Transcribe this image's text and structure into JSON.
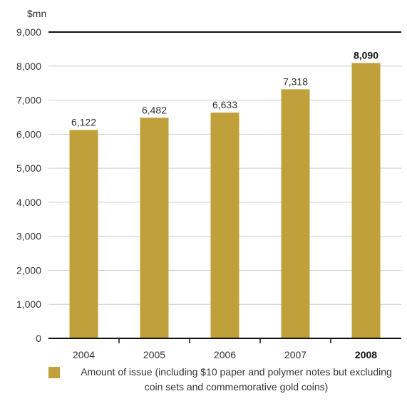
{
  "chart_data": {
    "type": "bar",
    "unit_label": "$mn",
    "categories": [
      "2004",
      "2005",
      "2006",
      "2007",
      "2008"
    ],
    "values": [
      6122,
      6482,
      6633,
      7318,
      8090
    ],
    "value_labels": [
      "6,122",
      "6,482",
      "6,633",
      "7,318",
      "8,090"
    ],
    "highlight_category": "2008",
    "ylim": [
      0,
      9000
    ],
    "yticks": [
      0,
      1000,
      2000,
      3000,
      4000,
      5000,
      6000,
      7000,
      8000,
      9000
    ],
    "ytick_labels": [
      "0",
      "1,000",
      "2,000",
      "3,000",
      "4,000",
      "5,000",
      "6,000",
      "7,000",
      "8,000",
      "9,000"
    ],
    "grid": true,
    "legend_position": "bottom",
    "series": [
      {
        "name": "Amount of issue (including $10 paper and polymer notes but excluding coin sets and commemorative gold coins)"
      }
    ],
    "colors": {
      "bar": "#bfa03a",
      "grid": "#cccccc",
      "axis": "#111111"
    }
  }
}
